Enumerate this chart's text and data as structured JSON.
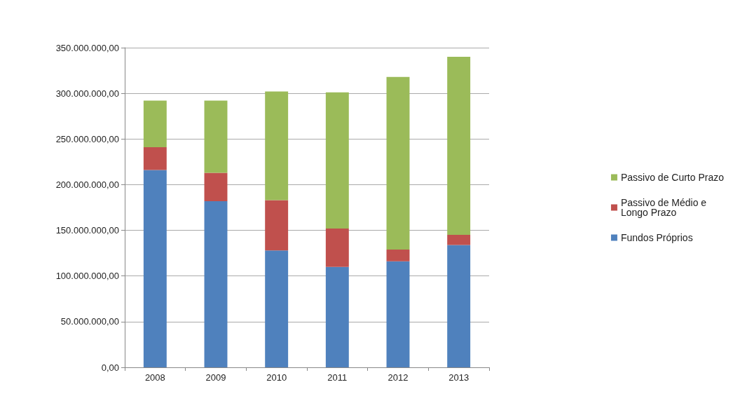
{
  "chart_data": {
    "type": "bar",
    "stacked": true,
    "categories": [
      "2008",
      "2009",
      "2010",
      "2011",
      "2012",
      "2013"
    ],
    "series": [
      {
        "name": "Fundos Próprios",
        "color": "#4f81bd",
        "values": [
          216000000,
          182000000,
          128000000,
          110000000,
          116000000,
          134000000
        ]
      },
      {
        "name": "Passivo de Médio e Longo Prazo",
        "color": "#c0504d",
        "values": [
          25000000,
          31000000,
          55000000,
          42000000,
          13000000,
          11000000
        ]
      },
      {
        "name": "Passivo de Curto Prazo",
        "color": "#9bbb59",
        "values": [
          51000000,
          79000000,
          119000000,
          149000000,
          189000000,
          195000000
        ]
      }
    ],
    "ylim": [
      0,
      350000000
    ],
    "yticks": [
      {
        "value": 0,
        "label": "0,00"
      },
      {
        "value": 50000000,
        "label": "50.000.000,00"
      },
      {
        "value": 100000000,
        "label": "100.000.000,00"
      },
      {
        "value": 150000000,
        "label": "150.000.000,00"
      },
      {
        "value": 200000000,
        "label": "200.000.000,00"
      },
      {
        "value": 250000000,
        "label": "250.000.000,00"
      },
      {
        "value": 300000000,
        "label": "300.000.000,00"
      },
      {
        "value": 350000000,
        "label": "350.000.000,00"
      }
    ],
    "grid": "y",
    "legend": "right"
  }
}
